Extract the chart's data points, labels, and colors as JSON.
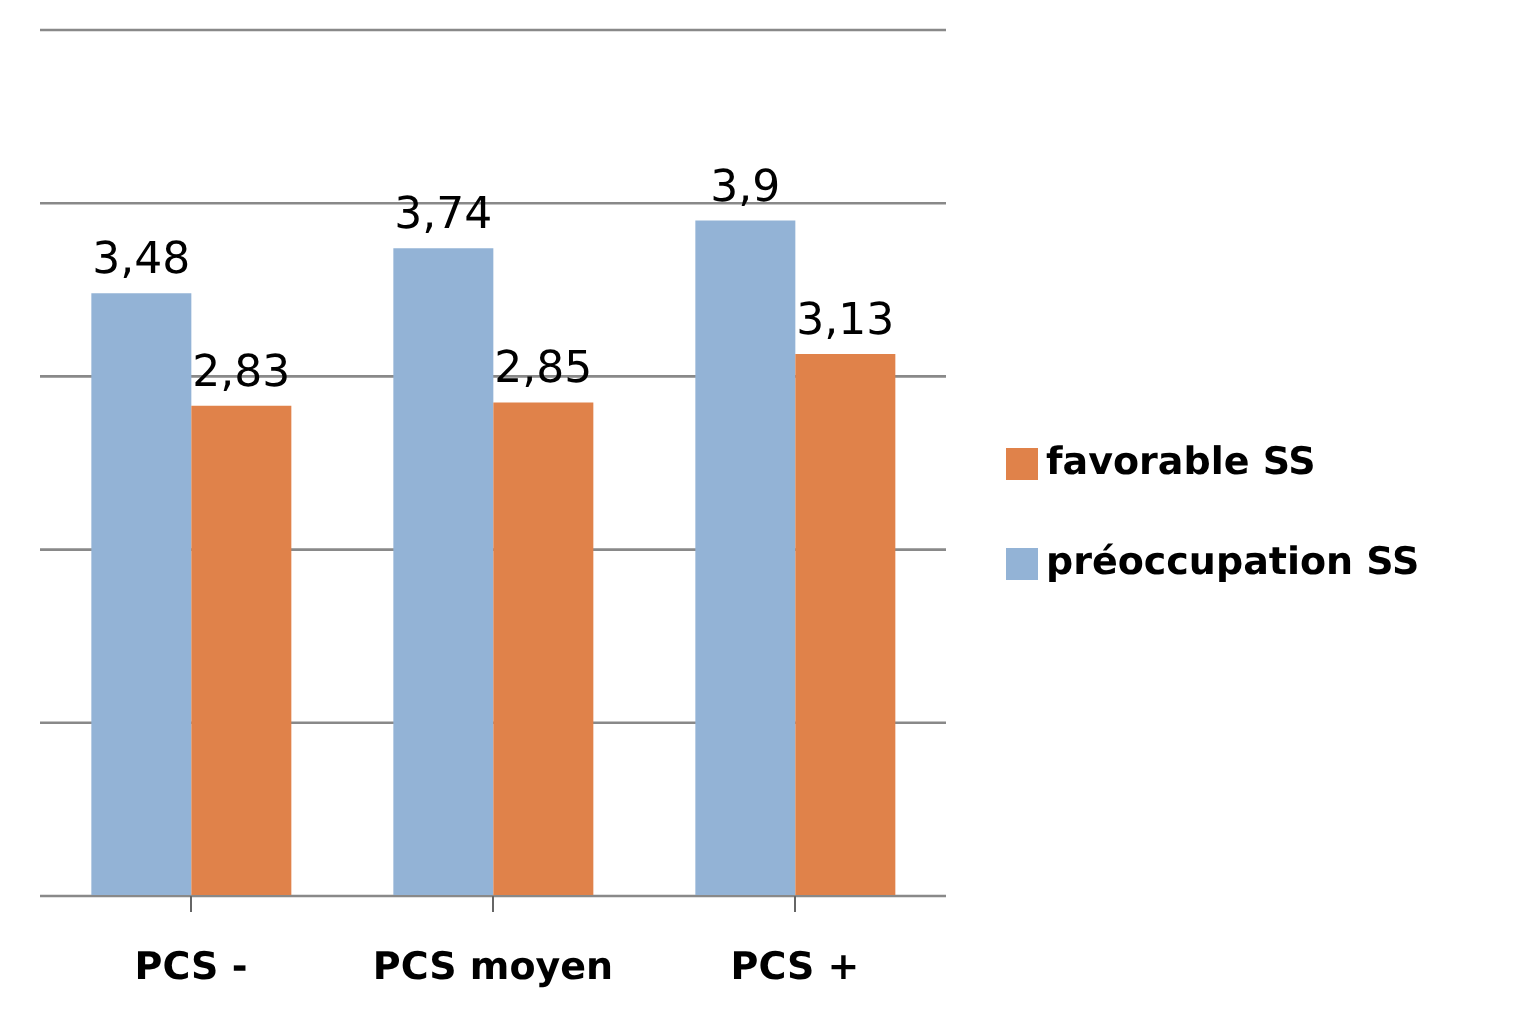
{
  "chart_data": {
    "type": "bar",
    "categories": [
      "PCS -",
      "PCS moyen",
      "PCS +"
    ],
    "series": [
      {
        "name": "préoccupation SS",
        "color": "#93b3d6",
        "values": [
          3.48,
          3.74,
          3.9
        ],
        "value_labels": [
          "3,48",
          "3,74",
          "3,9"
        ]
      },
      {
        "name": "favorable SS",
        "color": "#e0824a",
        "values": [
          2.83,
          2.85,
          3.13
        ],
        "value_labels": [
          "2,83",
          "2,85",
          "3,13"
        ]
      }
    ],
    "ylim": [
      0,
      5
    ],
    "yticks": [
      {
        "value": 0,
        "label": null
      },
      {
        "value": 1,
        "label": null
      },
      {
        "value": 2,
        "label": null
      },
      {
        "value": 3,
        "label": null
      },
      {
        "value": 4,
        "label": null
      },
      {
        "value": 5,
        "label": null
      }
    ],
    "tick_labels": "x",
    "grid": "y",
    "legend": "right"
  }
}
